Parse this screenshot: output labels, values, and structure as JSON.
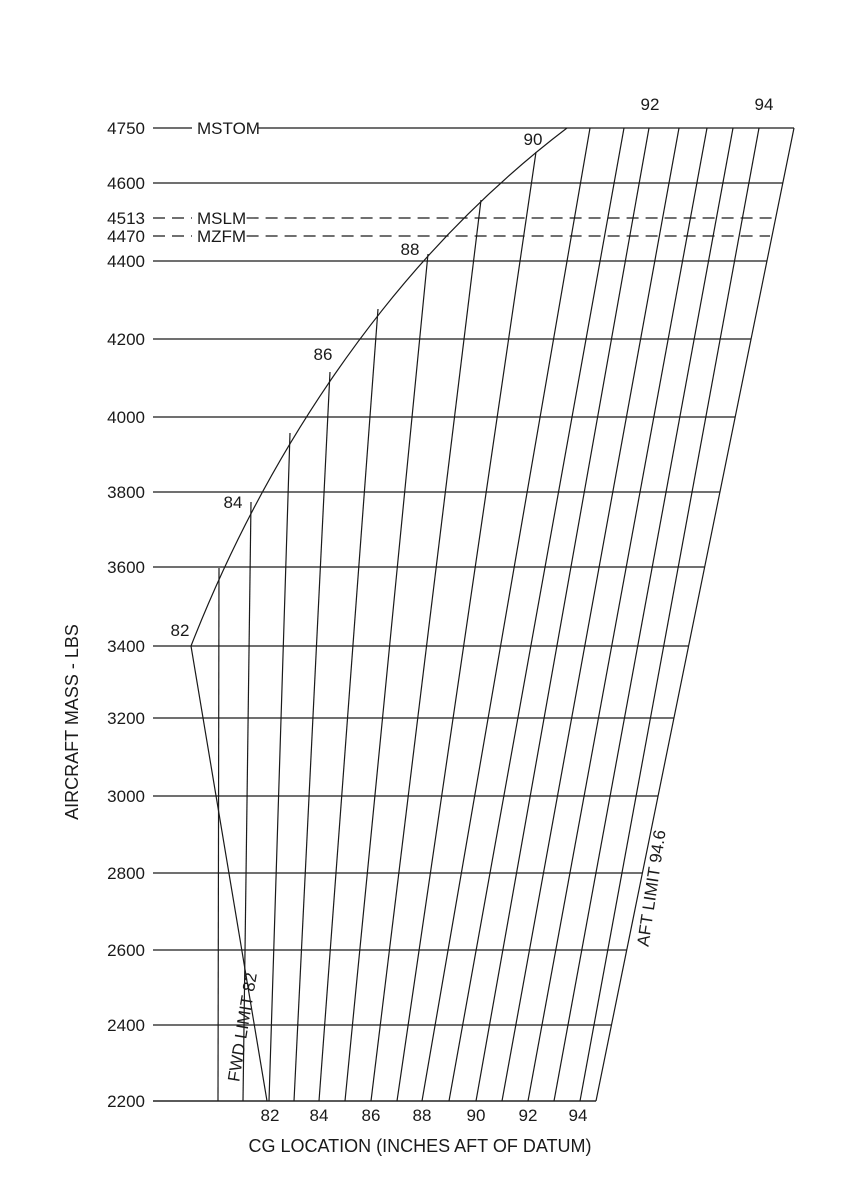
{
  "chart_data": {
    "type": "line",
    "subtype": "cg-envelope",
    "title": "",
    "xlabel": "CG LOCATION (INCHES AFT OF DATUM)",
    "ylabel": "AIRCRAFT MASS - LBS",
    "mass_ticks": [
      2200,
      2400,
      2600,
      2800,
      3000,
      3200,
      3400,
      3600,
      3800,
      4000,
      4200,
      4400,
      4470,
      4513,
      4600,
      4750
    ],
    "mass_tick_labels": [
      "2200",
      "2400",
      "2600",
      "2800",
      "3000",
      "3200",
      "3400",
      "3600",
      "3800",
      "4000",
      "4200",
      "4400",
      "4470",
      "4513",
      "4600",
      "4750"
    ],
    "cg_bottom_ticks": [
      "82",
      "84",
      "86",
      "88",
      "90",
      "92",
      "94"
    ],
    "cg_bottom_values": [
      82,
      84,
      86,
      88,
      90,
      92,
      94
    ],
    "cg_top_ticks": [
      "92",
      "94"
    ],
    "cg_curve_labels": [
      "82",
      "84",
      "86",
      "88",
      "90"
    ],
    "limits": [
      {
        "name": "MSTOM",
        "mass": 4750,
        "style": "solid"
      },
      {
        "name": "MSLM",
        "mass": 4513,
        "style": "dashed"
      },
      {
        "name": "MZFM",
        "mass": 4470,
        "style": "dashed"
      }
    ],
    "fwd_limit_label": "FWD LIMIT 82",
    "aft_limit_label": "AFT LIMIT 94.6",
    "fwd_limit_cg": 82,
    "aft_limit_cg": 94.6,
    "grid": true
  }
}
